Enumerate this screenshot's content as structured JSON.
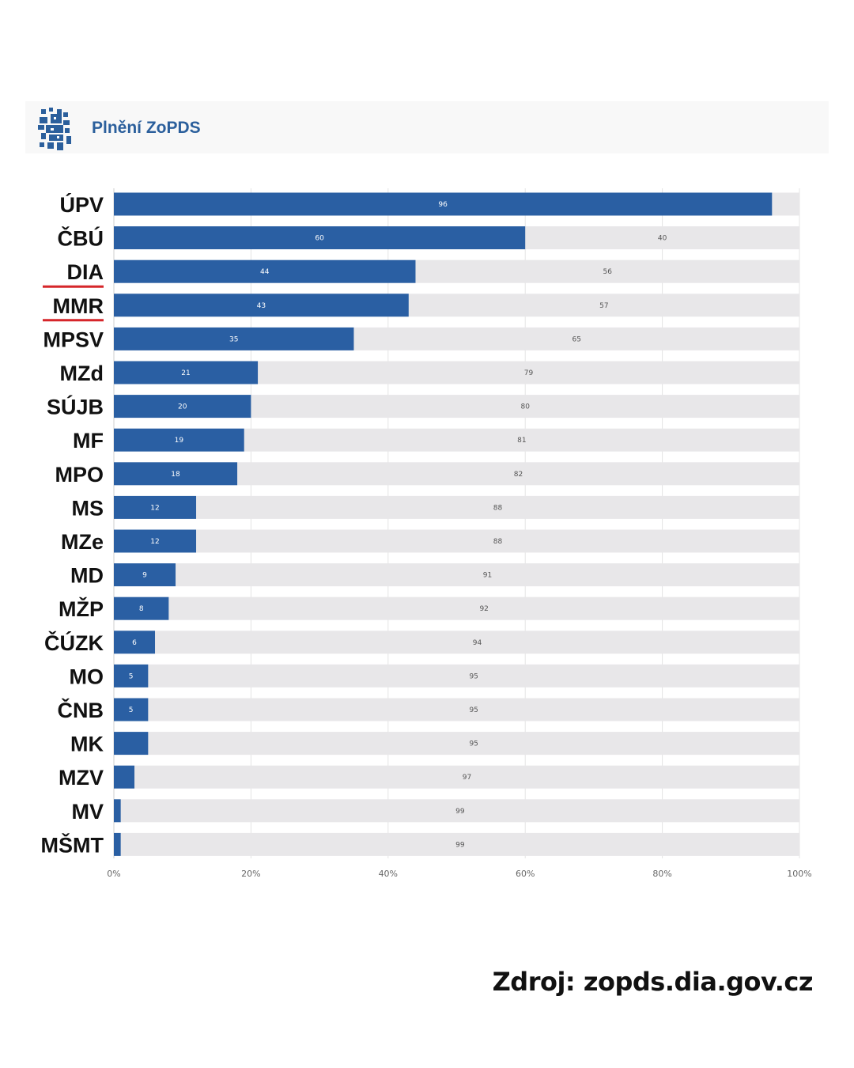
{
  "header": {
    "title": "Plnění ZoPDS",
    "logo_icon": "lion-emblem-icon"
  },
  "source_text": "Zdroj: zopds.dia.gov.cz",
  "colors": {
    "bar_primary": "#2a5fa3",
    "bar_remainder": "#e8e7e9",
    "underline_highlight": "#d6262a"
  },
  "chart_data": {
    "type": "bar",
    "orientation": "horizontal",
    "stacked": true,
    "title": "Plnění ZoPDS",
    "categories": [
      "ÚPV",
      "ČBÚ",
      "DIA",
      "MMR",
      "MPSV",
      "MZd",
      "SÚJB",
      "MF",
      "MPO",
      "MS",
      "MZe",
      "MD",
      "MŽP",
      "ČÚZK",
      "MO",
      "ČNB",
      "MK",
      "MZV",
      "MV",
      "MŠMT"
    ],
    "highlighted_categories": [
      "DIA",
      "MMR"
    ],
    "series": [
      {
        "name": "",
        "values": [
          96,
          60,
          44,
          43,
          35,
          21,
          20,
          19,
          18,
          12,
          12,
          9,
          8,
          6,
          5,
          5,
          5,
          3,
          1,
          1
        ],
        "labels": [
          "96",
          "60",
          "44",
          "43",
          "35",
          "21",
          "20",
          "19",
          "18",
          "12",
          "12",
          "9",
          "8",
          "6",
          "5",
          "5",
          "",
          "",
          "",
          ""
        ]
      },
      {
        "name": "",
        "values": [
          4,
          40,
          56,
          57,
          65,
          79,
          80,
          81,
          82,
          88,
          88,
          91,
          92,
          94,
          95,
          95,
          95,
          97,
          99,
          99
        ],
        "labels": [
          "",
          "40",
          "56",
          "57",
          "65",
          "79",
          "80",
          "81",
          "82",
          "88",
          "88",
          "91",
          "92",
          "94",
          "95",
          "95",
          "95",
          "97",
          "99",
          "99"
        ]
      }
    ],
    "xlim": [
      0,
      100
    ],
    "x_ticks": [
      "0%",
      "20%",
      "40%",
      "60%",
      "80%",
      "100%"
    ],
    "grid": true,
    "legend": "none"
  }
}
